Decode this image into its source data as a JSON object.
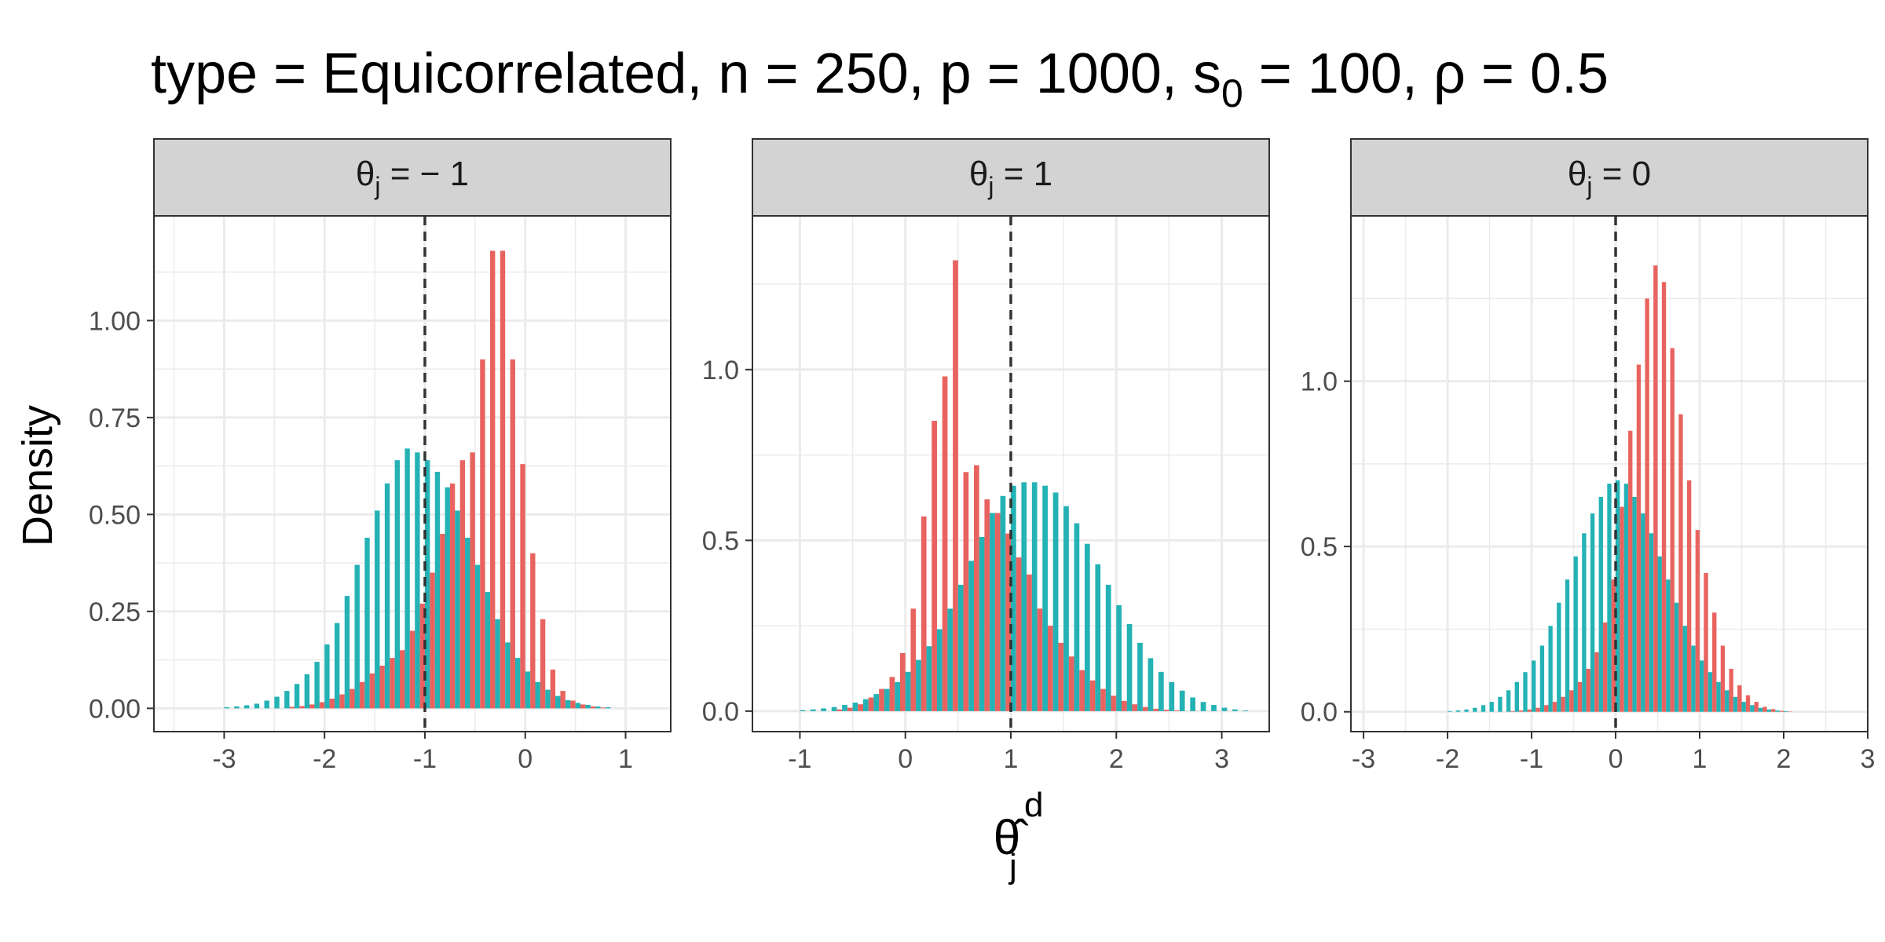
{
  "title": {
    "prefix": "type = Equicorrelated, n = 250, p = 1000, s",
    "subscript": "0",
    "suffix": " = 100, ρ = 0.5"
  },
  "ylabel": "Density",
  "xlabel": {
    "base": "θ̂",
    "superscript": "d",
    "subscript": "j"
  },
  "colors": {
    "red_series": "#E8635F",
    "teal_series": "#24B2B5",
    "strip_background": "#D3D3D3",
    "grid": "#EBEBEB",
    "reference_line": "#333333"
  },
  "chart_data": [
    {
      "type": "bar",
      "facet_label": {
        "symbol": "θ",
        "subscript": "j",
        "rest": " = − 1"
      },
      "true_value": -1,
      "xlim": [
        -3.7,
        1.45
      ],
      "ylim": [
        -0.06,
        1.27
      ],
      "xticks": [
        -3,
        -2,
        -1,
        0,
        1
      ],
      "xtick_labels": [
        "-3",
        "-2",
        "-1",
        "0",
        "1"
      ],
      "yticks": [
        0,
        0.25,
        0.5,
        0.75,
        1
      ],
      "ytick_labels": [
        "0.00",
        "0.25",
        "0.50",
        "0.75",
        "1.00"
      ],
      "bin_start": -3.0,
      "bin_width": 0.1,
      "series": [
        {
          "name": "teal",
          "values": [
            0.003,
            0.005,
            0.008,
            0.012,
            0.02,
            0.03,
            0.045,
            0.063,
            0.088,
            0.12,
            0.165,
            0.22,
            0.29,
            0.37,
            0.44,
            0.51,
            0.58,
            0.64,
            0.67,
            0.66,
            0.64,
            0.61,
            0.57,
            0.51,
            0.44,
            0.37,
            0.3,
            0.23,
            0.17,
            0.13,
            0.095,
            0.068,
            0.048,
            0.032,
            0.021,
            0.014,
            0.009,
            0.005,
            0.003
          ]
        },
        {
          "name": "red",
          "values": [
            0,
            0,
            0,
            0,
            0,
            0,
            0.004,
            0.006,
            0.01,
            0.016,
            0.025,
            0.036,
            0.05,
            0.068,
            0.09,
            0.11,
            0.13,
            0.15,
            0.2,
            0.27,
            0.35,
            0.45,
            0.58,
            0.64,
            0.66,
            0.9,
            1.18,
            1.18,
            0.9,
            0.63,
            0.4,
            0.23,
            0.1,
            0.045,
            0.02,
            0.01,
            0.005,
            0.002,
            0
          ]
        }
      ]
    },
    {
      "type": "bar",
      "facet_label": {
        "symbol": "θ",
        "subscript": "j",
        "rest": " = 1"
      },
      "true_value": 1,
      "xlim": [
        -1.45,
        3.45
      ],
      "ylim": [
        -0.06,
        1.45
      ],
      "xticks": [
        -1,
        0,
        1,
        2,
        3
      ],
      "xtick_labels": [
        "-1",
        "0",
        "1",
        "2",
        "3"
      ],
      "yticks": [
        0,
        0.5,
        1
      ],
      "ytick_labels": [
        "0.0",
        "0.5",
        "1.0"
      ],
      "bin_start": -1.0,
      "bin_width": 0.1,
      "series": [
        {
          "name": "teal",
          "values": [
            0.003,
            0.005,
            0.008,
            0.012,
            0.018,
            0.025,
            0.035,
            0.05,
            0.065,
            0.085,
            0.115,
            0.15,
            0.19,
            0.24,
            0.3,
            0.37,
            0.44,
            0.51,
            0.58,
            0.63,
            0.66,
            0.67,
            0.67,
            0.66,
            0.64,
            0.6,
            0.55,
            0.49,
            0.43,
            0.37,
            0.31,
            0.255,
            0.2,
            0.155,
            0.115,
            0.085,
            0.06,
            0.04,
            0.027,
            0.018,
            0.01,
            0.005,
            0.002
          ]
        },
        {
          "name": "red",
          "values": [
            0,
            0,
            0,
            0.005,
            0.01,
            0.02,
            0.04,
            0.065,
            0.1,
            0.17,
            0.3,
            0.57,
            0.85,
            0.98,
            1.32,
            0.7,
            0.72,
            0.62,
            0.58,
            0.52,
            0.45,
            0.4,
            0.3,
            0.25,
            0.2,
            0.16,
            0.12,
            0.09,
            0.065,
            0.045,
            0.03,
            0.02,
            0.012,
            0.007,
            0.004,
            0.002,
            0,
            0,
            0,
            0,
            0,
            0,
            0
          ]
        }
      ]
    },
    {
      "type": "bar",
      "facet_label": {
        "symbol": "θ",
        "subscript": "j",
        "rest": " = 0"
      },
      "true_value": 0,
      "xlim": [
        -3.15,
        3.0
      ],
      "ylim": [
        -0.06,
        1.5
      ],
      "xticks": [
        -3,
        -2,
        -1,
        0,
        1,
        2,
        3
      ],
      "xtick_labels": [
        "-3",
        "-2",
        "-1",
        "0",
        "1",
        "2",
        "3"
      ],
      "yticks": [
        0,
        0.5,
        1
      ],
      "ytick_labels": [
        "0.0",
        "0.5",
        "1.0"
      ],
      "bin_start": -2.0,
      "bin_width": 0.1,
      "series": [
        {
          "name": "teal",
          "values": [
            0.002,
            0.004,
            0.007,
            0.012,
            0.02,
            0.03,
            0.045,
            0.065,
            0.09,
            0.12,
            0.155,
            0.2,
            0.26,
            0.33,
            0.4,
            0.47,
            0.54,
            0.6,
            0.65,
            0.69,
            0.7,
            0.69,
            0.65,
            0.6,
            0.54,
            0.47,
            0.4,
            0.33,
            0.26,
            0.2,
            0.155,
            0.12,
            0.09,
            0.065,
            0.045,
            0.03,
            0.02,
            0.012,
            0.007,
            0.004,
            0.002
          ]
        },
        {
          "name": "red",
          "values": [
            0,
            0,
            0,
            0,
            0,
            0,
            0,
            0.002,
            0.004,
            0.007,
            0.012,
            0.02,
            0.03,
            0.045,
            0.065,
            0.09,
            0.13,
            0.18,
            0.27,
            0.4,
            0.62,
            0.85,
            1.05,
            1.25,
            1.35,
            1.3,
            1.1,
            0.9,
            0.7,
            0.55,
            0.42,
            0.3,
            0.2,
            0.13,
            0.08,
            0.05,
            0.03,
            0.015,
            0.008,
            0.003,
            0.001
          ]
        }
      ]
    }
  ]
}
